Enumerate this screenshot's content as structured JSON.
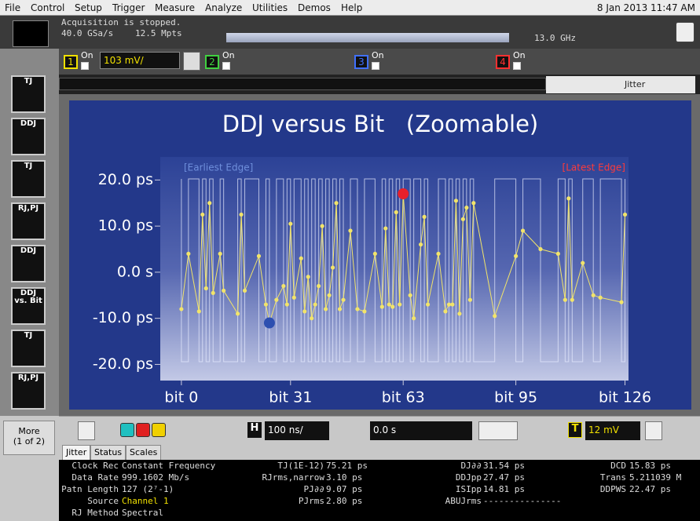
{
  "menu": {
    "items": [
      "File",
      "Control",
      "Setup",
      "Trigger",
      "Measure",
      "Analyze",
      "Utilities",
      "Demos",
      "Help"
    ],
    "datetime": "8 Jan 2013 11:47 AM"
  },
  "status": {
    "message": "Acquisition is stopped.",
    "sample_rate": "40.0 GSa/s",
    "memory": "12.5 Mpts",
    "bandwidth": "13.0 GHz"
  },
  "channels": [
    {
      "number": "1",
      "state": "On",
      "scale": "103 mV/"
    },
    {
      "number": "2",
      "state": "On"
    },
    {
      "number": "3",
      "state": "On"
    },
    {
      "number": "4",
      "state": "On"
    }
  ],
  "tab_label": "Jitter",
  "sidebar": {
    "buttons": [
      "TJ",
      "DDJ",
      "TJ",
      "RJ,PJ",
      "DDJ",
      "DDJ vs. Bit",
      "TJ",
      "RJ,PJ"
    ],
    "more": "More",
    "page": "(1 of 2)"
  },
  "chart_data": {
    "type": "line",
    "title": "DDJ versus Bit   (Zoomable)",
    "annotations": [
      {
        "text": "[Earliest Edge]",
        "color": "#6f8fdc"
      },
      {
        "text": "[Latest Edge]",
        "color": "#ff3a3a"
      }
    ],
    "x": [
      0,
      2,
      5,
      6,
      7,
      8,
      9,
      11,
      12,
      16,
      17,
      18,
      22,
      24,
      25,
      27,
      29,
      30,
      31,
      32,
      34,
      35,
      36,
      37,
      38,
      39,
      40,
      41,
      42,
      43,
      44,
      45,
      46,
      48,
      50,
      52,
      55,
      57,
      58,
      59,
      60,
      61,
      62,
      63,
      65,
      66,
      68,
      69,
      70,
      73,
      75,
      76,
      77,
      78,
      79,
      80,
      81,
      82,
      83,
      89,
      95,
      97,
      102,
      107,
      109,
      110,
      111,
      114,
      117,
      119,
      125,
      126
    ],
    "values": [
      -8,
      4,
      -8.5,
      12.5,
      -3.5,
      15,
      -4.5,
      4,
      -4,
      -9,
      12.5,
      -4,
      3.5,
      -7,
      -11,
      -6,
      -3,
      -7,
      10.5,
      -5.5,
      3,
      -8.5,
      -1,
      -10,
      -7,
      -3,
      10,
      -8,
      -5,
      1,
      15,
      -8,
      -6,
      9,
      -8,
      -8.5,
      4,
      -7.5,
      9.5,
      -7,
      -7.5,
      13,
      -7,
      17,
      -5,
      -10,
      6,
      12,
      -7,
      4,
      -8.5,
      -7,
      -7,
      15.5,
      -9,
      11.5,
      14,
      -6,
      15,
      -9.5,
      3.5,
      9,
      5,
      4,
      -6,
      16,
      -6,
      2,
      -5,
      -5.5,
      -6.5,
      12.5
    ],
    "color": "#f2e46a",
    "earliest_color": "#2d4fb0",
    "latest_color": "#e8202a",
    "xlim": [
      -6,
      127
    ],
    "ylim": [
      -23.5,
      25
    ],
    "xticks": [
      {
        "value": 0,
        "label": "bit 0"
      },
      {
        "value": 31,
        "label": "bit 31"
      },
      {
        "value": 63,
        "label": "bit 63"
      },
      {
        "value": 95,
        "label": "bit 95"
      },
      {
        "value": 126,
        "label": "bit 126"
      }
    ],
    "yticks": [
      {
        "value": 20,
        "label": "20.0 ps"
      },
      {
        "value": 10,
        "label": "10.0 ps"
      },
      {
        "value": 0,
        "label": "0.0 s"
      },
      {
        "value": -10,
        "label": "-10.0 ps"
      },
      {
        "value": -20,
        "label": "-20.0 ps"
      }
    ]
  },
  "toolbar": {
    "h_label": "H",
    "timebase": "100 ns/",
    "delay": "0.0 s",
    "t_label": "T",
    "trigger_level": "12 mV"
  },
  "tabs": [
    "Jitter",
    "Status",
    "Scales"
  ],
  "measurements": [
    [
      [
        "Clock Rec",
        "Constant Frequency"
      ],
      [
        "Data Rate",
        "999.1602 Mb/s"
      ],
      [
        "Patn Length",
        "127 (2⁷-1)"
      ],
      [
        "Source",
        "Channel 1"
      ],
      [
        "RJ Method",
        "Spectral"
      ]
    ],
    [
      [
        "TJ(1E-12)",
        "75.21 ps"
      ],
      [
        "RJrms,narrow",
        "3.10 ps"
      ],
      [
        "PJ∂∂",
        "9.07 ps"
      ],
      [
        "PJrms",
        "2.80 ps"
      ]
    ],
    [
      [
        "DJ∂∂",
        "31.54 ps"
      ],
      [
        "DDJpp",
        "27.47 ps"
      ],
      [
        "ISIpp",
        "14.81 ps"
      ],
      [
        "ABUJrms",
        "---------------"
      ]
    ],
    [
      [
        "DCD",
        "15.83 ps"
      ],
      [
        "Trans",
        "5.211039 M"
      ],
      [
        "DDPWS",
        "22.47 ps"
      ]
    ]
  ]
}
